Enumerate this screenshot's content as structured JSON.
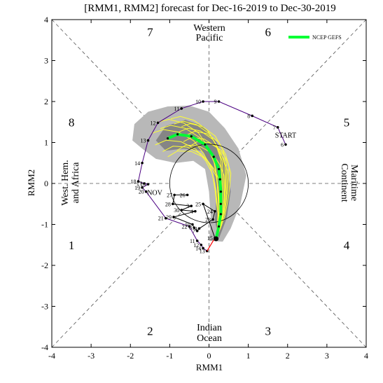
{
  "chart_data": {
    "type": "line",
    "title": "[RMM1, RMM2] forecast for Dec-16-2019 to Dec-30-2019",
    "xlabel": "RMM1",
    "ylabel": "RMM2",
    "xlim": [
      -4,
      4
    ],
    "ylim": [
      -4,
      4
    ],
    "xticks": [
      "-4",
      "-3",
      "-2",
      "-1",
      "0",
      "1",
      "2",
      "3",
      "4"
    ],
    "yticks": [
      "-4",
      "-3",
      "-2",
      "-1",
      "0",
      "1",
      "2",
      "3",
      "4"
    ],
    "phase_numbers": [
      {
        "label": "7",
        "x": -1.5,
        "y": 3.7
      },
      {
        "label": "6",
        "x": 1.5,
        "y": 3.7
      },
      {
        "label": "8",
        "x": -3.5,
        "y": 1.5
      },
      {
        "label": "5",
        "x": 3.5,
        "y": 1.5
      },
      {
        "label": "1",
        "x": -3.5,
        "y": -1.5
      },
      {
        "label": "4",
        "x": 3.5,
        "y": -1.5
      },
      {
        "label": "2",
        "x": -1.5,
        "y": -3.6
      },
      {
        "label": "3",
        "x": 1.5,
        "y": -3.6
      }
    ],
    "regions": {
      "top": [
        "Western",
        "Pacific"
      ],
      "bottom": [
        "Indian",
        "Ocean"
      ],
      "left": [
        "West. Hem.",
        "and Africa"
      ],
      "right": [
        "Maritime",
        "Continent"
      ]
    },
    "legend": {
      "label": "NCEP GEFS",
      "position": "top-right",
      "color": "#00ff33"
    },
    "month_labels": [
      {
        "label": "START",
        "x": 1.95,
        "y": 1.12
      },
      {
        "label": "NOV",
        "x": -1.38,
        "y": -0.28
      }
    ],
    "observed": {
      "name": "",
      "color": "#4b0082",
      "points": [
        {
          "label": "6",
          "x": 1.95,
          "y": 0.95
        },
        {
          "label": "7",
          "x": 1.75,
          "y": 1.37
        },
        {
          "label": "8",
          "x": 1.1,
          "y": 1.65
        },
        {
          "label": "9",
          "x": 0.25,
          "y": 2.0
        },
        {
          "label": "10",
          "x": -0.15,
          "y": 2.0
        },
        {
          "label": "11",
          "x": -0.7,
          "y": 1.83
        },
        {
          "label": "12",
          "x": -1.3,
          "y": 1.48
        },
        {
          "label": "13",
          "x": -1.55,
          "y": 1.05
        },
        {
          "label": "14",
          "x": -1.7,
          "y": 0.5
        },
        {
          "label": "18",
          "x": -1.8,
          "y": 0.05
        },
        {
          "label": "17",
          "x": -1.65,
          "y": 0.0
        },
        {
          "label": "16",
          "x": -1.55,
          "y": -0.02
        },
        {
          "label": "19",
          "x": -1.7,
          "y": -0.1
        },
        {
          "label": "20",
          "x": -1.6,
          "y": -0.2
        },
        {
          "label": "21",
          "x": -1.1,
          "y": -0.85
        },
        {
          "label": "22",
          "x": -0.5,
          "y": -1.05
        },
        {
          "label": "11",
          "x": -0.3,
          "y": -1.4
        },
        {
          "label": "12",
          "x": -0.2,
          "y": -1.5
        },
        {
          "label": "14",
          "x": -0.15,
          "y": -1.58
        },
        {
          "label": "13",
          "x": -0.05,
          "y": -1.65
        }
      ]
    },
    "loop_points": [
      {
        "label": "26",
        "x": -0.55,
        "y": -0.28
      },
      {
        "label": "27",
        "x": -0.88,
        "y": -0.28
      },
      {
        "label": "28",
        "x": -0.92,
        "y": -0.5
      },
      {
        "label": "3",
        "x": -0.45,
        "y": -0.55
      },
      {
        "label": "30",
        "x": -0.7,
        "y": -0.65
      },
      {
        "label": "4",
        "x": -0.35,
        "y": -0.68
      },
      {
        "label": "29",
        "x": -0.9,
        "y": -0.82
      },
      {
        "label": "10",
        "x": -0.42,
        "y": -1.0
      },
      {
        "label": "8",
        "x": -0.38,
        "y": -1.08
      },
      {
        "label": "7",
        "x": -0.3,
        "y": -1.16
      },
      {
        "label": "9",
        "x": -0.25,
        "y": -1.1
      },
      {
        "label": "23",
        "x": 0.1,
        "y": -0.88
      },
      {
        "label": "24",
        "x": 0.15,
        "y": -0.68
      },
      {
        "label": "25",
        "x": -0.15,
        "y": -0.5
      },
      {
        "label": "15",
        "x": 0.15,
        "y": -1.33
      }
    ],
    "forecast_mean": {
      "name": "NCEP GEFS",
      "color": "#00ff33",
      "points": [
        {
          "x": 0.18,
          "y": -1.35
        },
        {
          "x": 0.25,
          "y": -1.05
        },
        {
          "x": 0.3,
          "y": -0.75
        },
        {
          "x": 0.3,
          "y": -0.5
        },
        {
          "x": 0.3,
          "y": -0.2
        },
        {
          "x": 0.28,
          "y": 0.1
        },
        {
          "x": 0.25,
          "y": 0.35
        },
        {
          "x": 0.12,
          "y": 0.65
        },
        {
          "x": -0.1,
          "y": 0.95
        },
        {
          "x": -0.45,
          "y": 1.15
        },
        {
          "x": -0.8,
          "y": 1.2
        },
        {
          "x": -1.05,
          "y": 1.1
        }
      ]
    },
    "spread_outer": [
      {
        "x": -1.95,
        "y": 1.05
      },
      {
        "x": -1.9,
        "y": 1.45
      },
      {
        "x": -1.55,
        "y": 1.75
      },
      {
        "x": -1.05,
        "y": 1.88
      },
      {
        "x": -0.5,
        "y": 1.9
      },
      {
        "x": 0.0,
        "y": 1.75
      },
      {
        "x": 0.4,
        "y": 1.35
      },
      {
        "x": 0.75,
        "y": 0.85
      },
      {
        "x": 0.95,
        "y": 0.2
      },
      {
        "x": 0.8,
        "y": -0.5
      },
      {
        "x": 0.55,
        "y": -1.1
      },
      {
        "x": 0.35,
        "y": -1.42
      },
      {
        "x": 0.0,
        "y": -1.4
      },
      {
        "x": 0.05,
        "y": -0.9
      },
      {
        "x": 0.0,
        "y": -0.2
      },
      {
        "x": -0.1,
        "y": 0.35
      },
      {
        "x": -0.4,
        "y": 0.55
      },
      {
        "x": -0.85,
        "y": 0.5
      },
      {
        "x": -1.35,
        "y": 0.6
      },
      {
        "x": -1.7,
        "y": 0.85
      }
    ],
    "spread_inner": [
      {
        "x": -1.35,
        "y": 1.05
      },
      {
        "x": -1.1,
        "y": 1.4
      },
      {
        "x": -0.6,
        "y": 1.55
      },
      {
        "x": -0.15,
        "y": 1.4
      },
      {
        "x": 0.2,
        "y": 1.0
      },
      {
        "x": 0.45,
        "y": 0.45
      },
      {
        "x": 0.55,
        "y": -0.2
      },
      {
        "x": 0.45,
        "y": -0.85
      },
      {
        "x": 0.25,
        "y": -1.35
      },
      {
        "x": 0.15,
        "y": -0.9
      },
      {
        "x": 0.2,
        "y": -0.2
      },
      {
        "x": 0.1,
        "y": 0.4
      },
      {
        "x": -0.2,
        "y": 0.8
      },
      {
        "x": -0.65,
        "y": 0.85
      },
      {
        "x": -1.1,
        "y": 0.8
      }
    ]
  }
}
